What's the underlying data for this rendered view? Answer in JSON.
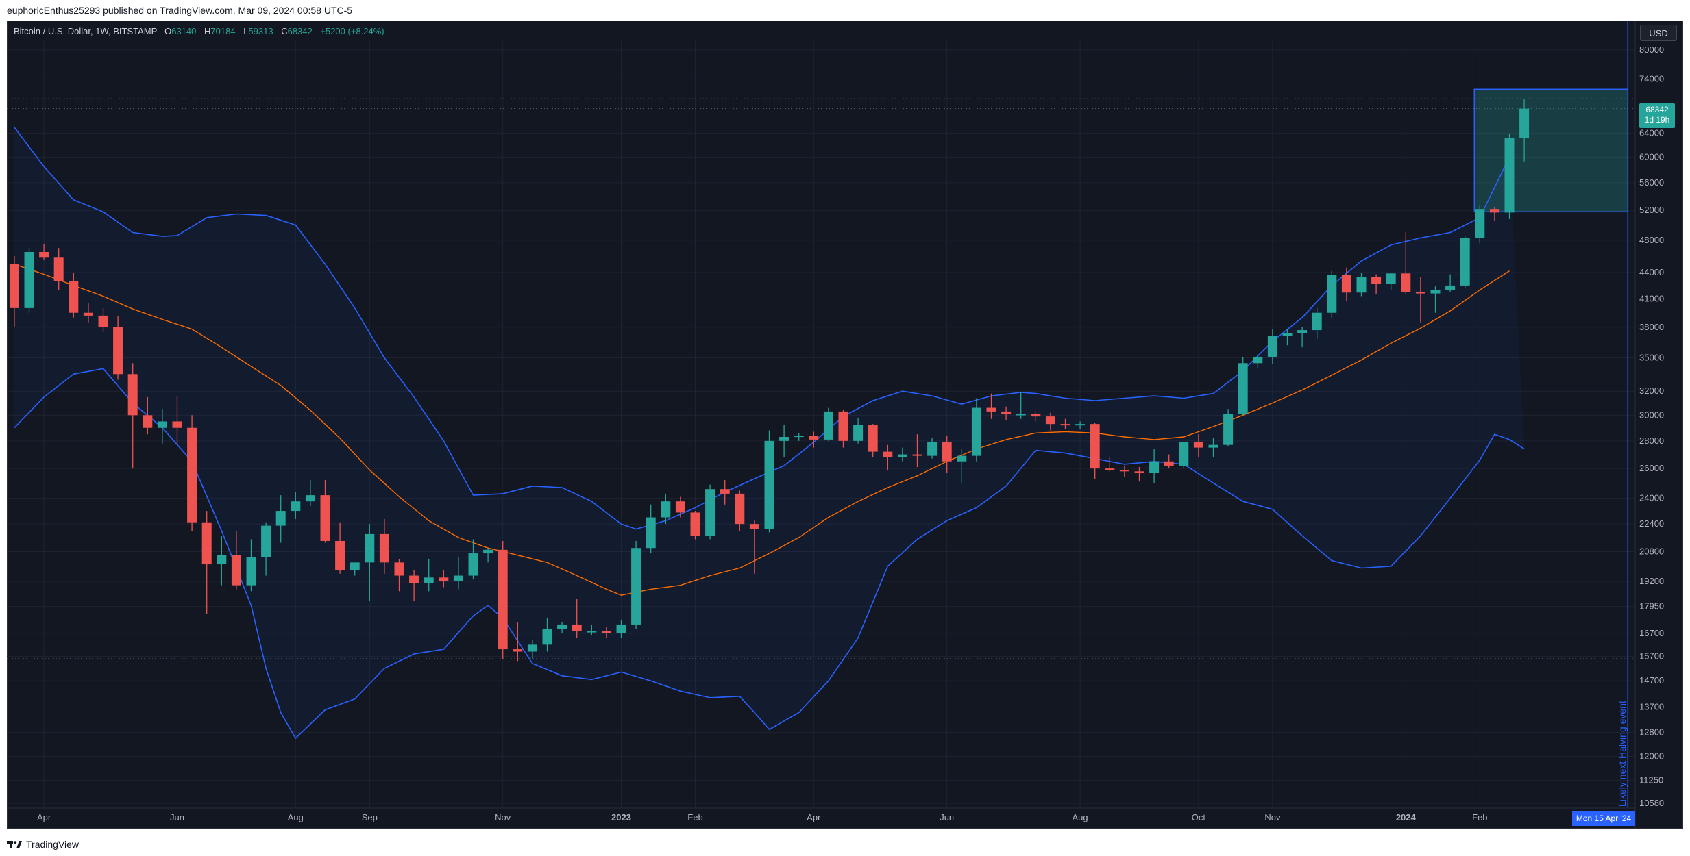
{
  "header": {
    "publisher_line": "euphoricEnthus25293 published on TradingView.com, Mar 09, 2024 00:58 UTC-5"
  },
  "legend": {
    "symbol": "Bitcoin / U.S. Dollar, 1W, BITSTAMP",
    "open_key": "O",
    "open": "63140",
    "high_key": "H",
    "high": "70184",
    "low_key": "L",
    "low": "59313",
    "close_key": "C",
    "close": "68342",
    "change": "+5200 (+8.24%)"
  },
  "price_scale": {
    "currency": "USD",
    "last_price": "68342",
    "countdown": "1d 19h"
  },
  "time_scale": {
    "cursor_date": "Mon 15 Apr '24"
  },
  "annotation": {
    "vertical_line_label": "Likely next Halving event"
  },
  "footer": {
    "brand": "TradingView"
  },
  "colors": {
    "background": "#131722",
    "up": "#26a69a",
    "down": "#ef5350",
    "bands": "#2962ff",
    "basis": "#ff6d00",
    "grid": "#1f2330"
  },
  "chart_data": {
    "type": "candlestick",
    "symbol": "BTCUSD",
    "interval": "1W",
    "scale": "log",
    "y_ticks": [
      10580,
      11250,
      12000,
      12800,
      13700,
      14700,
      15700,
      16700,
      17950,
      19200,
      20800,
      22400,
      24000,
      26000,
      28000,
      30000,
      32000,
      35000,
      38000,
      41000,
      44000,
      48000,
      52000,
      56000,
      60000,
      64000,
      68342,
      74000,
      80000
    ],
    "x_ticks": [
      {
        "label": "Apr",
        "i": 2
      },
      {
        "label": "Jun",
        "i": 11
      },
      {
        "label": "Aug",
        "i": 19
      },
      {
        "label": "Sep",
        "i": 24
      },
      {
        "label": "Nov",
        "i": 33
      },
      {
        "label": "2023",
        "i": 41
      },
      {
        "label": "Feb",
        "i": 46
      },
      {
        "label": "Apr",
        "i": 54
      },
      {
        "label": "Jun",
        "i": 63
      },
      {
        "label": "Aug",
        "i": 72
      },
      {
        "label": "Oct",
        "i": 80
      },
      {
        "label": "Nov",
        "i": 85
      },
      {
        "label": "2024",
        "i": 94
      },
      {
        "label": "Feb",
        "i": 99
      }
    ],
    "candles": [
      [
        45000,
        46000,
        38000,
        40000
      ],
      [
        40000,
        47000,
        39500,
        46500
      ],
      [
        46500,
        47500,
        45500,
        45800
      ],
      [
        45800,
        47000,
        42000,
        43000
      ],
      [
        43000,
        44000,
        39000,
        39500
      ],
      [
        39500,
        40500,
        38500,
        39200
      ],
      [
        39200,
        40000,
        37500,
        38000
      ],
      [
        38000,
        39200,
        33000,
        33500
      ],
      [
        33500,
        34500,
        26000,
        30000
      ],
      [
        30000,
        31500,
        28500,
        29000
      ],
      [
        29000,
        30500,
        27800,
        29500
      ],
      [
        29500,
        31600,
        27700,
        29000
      ],
      [
        29000,
        30000,
        22000,
        22500
      ],
      [
        22500,
        23200,
        17600,
        20100
      ],
      [
        20100,
        21700,
        19000,
        20600
      ],
      [
        20600,
        22000,
        18800,
        19000
      ],
      [
        19000,
        21500,
        18700,
        20500
      ],
      [
        20500,
        22500,
        19500,
        22300
      ],
      [
        22300,
        24200,
        21300,
        23200
      ],
      [
        23200,
        24400,
        22700,
        23800
      ],
      [
        23800,
        25200,
        23500,
        24200
      ],
      [
        24200,
        25200,
        21300,
        21400
      ],
      [
        21400,
        22500,
        19600,
        19800
      ],
      [
        19800,
        20200,
        19500,
        20200
      ],
      [
        20200,
        22400,
        18200,
        21800
      ],
      [
        21800,
        22700,
        19600,
        20200
      ],
      [
        20200,
        20400,
        18700,
        19500
      ],
      [
        19500,
        19800,
        18200,
        19100
      ],
      [
        19100,
        20400,
        18700,
        19400
      ],
      [
        19400,
        19800,
        18900,
        19200
      ],
      [
        19200,
        20500,
        18800,
        19500
      ],
      [
        19500,
        21500,
        19300,
        20700
      ],
      [
        20700,
        21000,
        20200,
        20900
      ],
      [
        20900,
        21400,
        15600,
        16000
      ],
      [
        16000,
        17200,
        15500,
        15900
      ],
      [
        15900,
        16400,
        15600,
        16200
      ],
      [
        16200,
        17400,
        15900,
        16900
      ],
      [
        16900,
        17200,
        16700,
        17100
      ],
      [
        17100,
        18300,
        16500,
        16800
      ],
      [
        16800,
        17100,
        16600,
        16800
      ],
      [
        16800,
        17000,
        16500,
        16700
      ],
      [
        16700,
        17300,
        16500,
        17100
      ],
      [
        17100,
        21400,
        16900,
        21000
      ],
      [
        21000,
        23600,
        20700,
        22800
      ],
      [
        22800,
        24300,
        22400,
        23800
      ],
      [
        23800,
        24100,
        22800,
        23100
      ],
      [
        23100,
        23200,
        21500,
        21700
      ],
      [
        21700,
        24900,
        21500,
        24600
      ],
      [
        24600,
        25200,
        23600,
        24300
      ],
      [
        24300,
        24500,
        22000,
        22400
      ],
      [
        22400,
        22600,
        19600,
        22100
      ],
      [
        22100,
        28800,
        21900,
        28000
      ],
      [
        28000,
        29200,
        26800,
        28300
      ],
      [
        28300,
        28600,
        28000,
        28400
      ],
      [
        28400,
        28700,
        27500,
        28100
      ],
      [
        28100,
        30600,
        28000,
        30300
      ],
      [
        30300,
        30400,
        27500,
        28000
      ],
      [
        28000,
        29800,
        27800,
        29200
      ],
      [
        29200,
        29300,
        26800,
        27200
      ],
      [
        27200,
        27700,
        25900,
        26800
      ],
      [
        26800,
        27500,
        26500,
        27000
      ],
      [
        27000,
        28500,
        26100,
        26900
      ],
      [
        26900,
        28200,
        26700,
        27900
      ],
      [
        27900,
        28400,
        25700,
        26500
      ],
      [
        26500,
        27400,
        25000,
        26900
      ],
      [
        26900,
        31400,
        26500,
        30600
      ],
      [
        30600,
        31800,
        29700,
        30300
      ],
      [
        30300,
        30700,
        29600,
        30100
      ],
      [
        30100,
        31900,
        29700,
        30100
      ],
      [
        30100,
        30300,
        29500,
        29900
      ],
      [
        29900,
        30200,
        28800,
        29300
      ],
      [
        29300,
        29700,
        28900,
        29200
      ],
      [
        29200,
        29500,
        28900,
        29300
      ],
      [
        29300,
        29400,
        25300,
        26000
      ],
      [
        26000,
        26800,
        25800,
        25900
      ],
      [
        25900,
        26200,
        25400,
        25800
      ],
      [
        25800,
        26100,
        25100,
        25700
      ],
      [
        25700,
        27400,
        25000,
        26500
      ],
      [
        26500,
        27000,
        26000,
        26200
      ],
      [
        26200,
        27500,
        26000,
        27900
      ],
      [
        27900,
        28500,
        26800,
        27500
      ],
      [
        27500,
        28200,
        26800,
        27700
      ],
      [
        27700,
        30500,
        27600,
        30100
      ],
      [
        30100,
        35100,
        30000,
        34500
      ],
      [
        34500,
        35300,
        34000,
        35100
      ],
      [
        35100,
        37800,
        34400,
        37100
      ],
      [
        37100,
        37800,
        36200,
        37400
      ],
      [
        37400,
        38000,
        36000,
        37700
      ],
      [
        37700,
        40000,
        36800,
        39500
      ],
      [
        39500,
        44200,
        39000,
        43700
      ],
      [
        43700,
        44600,
        40800,
        41700
      ],
      [
        41700,
        44000,
        41300,
        43500
      ],
      [
        43500,
        43800,
        41500,
        42700
      ],
      [
        42700,
        44000,
        42000,
        43900
      ],
      [
        43900,
        49000,
        41500,
        41800
      ],
      [
        41800,
        43500,
        38500,
        41600
      ],
      [
        41600,
        42400,
        39500,
        42000
      ],
      [
        42000,
        43800,
        41800,
        42500
      ],
      [
        42500,
        48500,
        42200,
        48300
      ],
      [
        48300,
        52700,
        47600,
        52200
      ],
      [
        52200,
        52500,
        50600,
        51700
      ],
      [
        51700,
        63900,
        50800,
        63100
      ],
      [
        63140,
        70184,
        59313,
        68342
      ]
    ],
    "basis": [
      [
        0,
        45000
      ],
      [
        2,
        43800
      ],
      [
        4,
        42500
      ],
      [
        6,
        41300
      ],
      [
        8,
        39900
      ],
      [
        10,
        38800
      ],
      [
        12,
        37800
      ],
      [
        14,
        36000
      ],
      [
        16,
        34200
      ],
      [
        18,
        32500
      ],
      [
        20,
        30400
      ],
      [
        22,
        28200
      ],
      [
        24,
        25900
      ],
      [
        26,
        24100
      ],
      [
        28,
        22600
      ],
      [
        30,
        21600
      ],
      [
        32,
        21000
      ],
      [
        34,
        20600
      ],
      [
        36,
        20200
      ],
      [
        38,
        19500
      ],
      [
        40,
        18800
      ],
      [
        41,
        18500
      ],
      [
        43,
        18800
      ],
      [
        45,
        19000
      ],
      [
        47,
        19500
      ],
      [
        49,
        19900
      ],
      [
        51,
        20700
      ],
      [
        53,
        21600
      ],
      [
        55,
        22800
      ],
      [
        57,
        23800
      ],
      [
        59,
        24700
      ],
      [
        61,
        25500
      ],
      [
        63,
        26500
      ],
      [
        65,
        27400
      ],
      [
        67,
        28100
      ],
      [
        69,
        28600
      ],
      [
        71,
        28700
      ],
      [
        73,
        28600
      ],
      [
        75,
        28300
      ],
      [
        77,
        28100
      ],
      [
        79,
        28300
      ],
      [
        81,
        29100
      ],
      [
        83,
        30000
      ],
      [
        85,
        31000
      ],
      [
        87,
        32100
      ],
      [
        89,
        33400
      ],
      [
        91,
        34800
      ],
      [
        93,
        36400
      ],
      [
        95,
        37900
      ],
      [
        97,
        39700
      ],
      [
        99,
        42000
      ],
      [
        101,
        44200
      ]
    ],
    "upper_band": [
      [
        0,
        65000
      ],
      [
        2,
        58500
      ],
      [
        4,
        53500
      ],
      [
        6,
        51800
      ],
      [
        8,
        49000
      ],
      [
        10,
        48500
      ],
      [
        11,
        48600
      ],
      [
        13,
        51000
      ],
      [
        15,
        51500
      ],
      [
        17,
        51300
      ],
      [
        19,
        50000
      ],
      [
        21,
        45000
      ],
      [
        23,
        40000
      ],
      [
        25,
        35000
      ],
      [
        27,
        31500
      ],
      [
        29,
        28000
      ],
      [
        31,
        24200
      ],
      [
        33,
        24300
      ],
      [
        35,
        24800
      ],
      [
        37,
        24700
      ],
      [
        39,
        23800
      ],
      [
        41,
        22400
      ],
      [
        42,
        22100
      ],
      [
        44,
        22600
      ],
      [
        46,
        23400
      ],
      [
        48,
        24400
      ],
      [
        50,
        25300
      ],
      [
        52,
        26200
      ],
      [
        54,
        27900
      ],
      [
        56,
        29900
      ],
      [
        58,
        31200
      ],
      [
        60,
        32000
      ],
      [
        62,
        31600
      ],
      [
        64,
        30900
      ],
      [
        66,
        31600
      ],
      [
        68,
        31900
      ],
      [
        69,
        31800
      ],
      [
        71,
        31400
      ],
      [
        73,
        31200
      ],
      [
        75,
        31400
      ],
      [
        77,
        31600
      ],
      [
        79,
        31400
      ],
      [
        81,
        31800
      ],
      [
        83,
        33800
      ],
      [
        85,
        36600
      ],
      [
        87,
        39000
      ],
      [
        89,
        42500
      ],
      [
        91,
        45400
      ],
      [
        93,
        47400
      ],
      [
        95,
        48300
      ],
      [
        97,
        49000
      ],
      [
        99,
        51000
      ],
      [
        101,
        60000
      ]
    ],
    "lower_band": [
      [
        0,
        29000
      ],
      [
        2,
        31500
      ],
      [
        4,
        33500
      ],
      [
        6,
        34000
      ],
      [
        8,
        31000
      ],
      [
        10,
        29000
      ],
      [
        12,
        26500
      ],
      [
        14,
        22000
      ],
      [
        16,
        18000
      ],
      [
        17,
        15200
      ],
      [
        18,
        13500
      ],
      [
        19,
        12600
      ],
      [
        21,
        13600
      ],
      [
        23,
        14000
      ],
      [
        25,
        15200
      ],
      [
        27,
        15800
      ],
      [
        29,
        16000
      ],
      [
        31,
        17500
      ],
      [
        32,
        18000
      ],
      [
        33,
        17400
      ],
      [
        35,
        15400
      ],
      [
        37,
        14900
      ],
      [
        39,
        14750
      ],
      [
        41,
        15050
      ],
      [
        43,
        14700
      ],
      [
        45,
        14300
      ],
      [
        47,
        14050
      ],
      [
        49,
        14100
      ],
      [
        50,
        13500
      ],
      [
        51,
        12900
      ],
      [
        53,
        13500
      ],
      [
        55,
        14700
      ],
      [
        57,
        16500
      ],
      [
        59,
        20000
      ],
      [
        61,
        21500
      ],
      [
        63,
        22600
      ],
      [
        65,
        23400
      ],
      [
        67,
        24800
      ],
      [
        69,
        27300
      ],
      [
        71,
        27100
      ],
      [
        73,
        26700
      ],
      [
        75,
        26300
      ],
      [
        77,
        26500
      ],
      [
        79,
        26300
      ],
      [
        81,
        25000
      ],
      [
        83,
        23800
      ],
      [
        85,
        23300
      ],
      [
        87,
        21700
      ],
      [
        89,
        20300
      ],
      [
        91,
        19900
      ],
      [
        93,
        20000
      ],
      [
        95,
        21700
      ],
      [
        97,
        24000
      ],
      [
        99,
        26600
      ],
      [
        100,
        28500
      ],
      [
        101,
        28100
      ],
      [
        102,
        27400
      ]
    ],
    "indicators": [
      "Bollinger Bands (20, 2) with orange basis"
    ],
    "annotations": {
      "highlight_box": {
        "start_index": 99,
        "end_index": 109,
        "top_price": 72000,
        "bottom_price": 51800
      },
      "vertical_line_index": 109,
      "horizontal_dotted_lines": [
        70184,
        68342,
        15600
      ]
    }
  }
}
